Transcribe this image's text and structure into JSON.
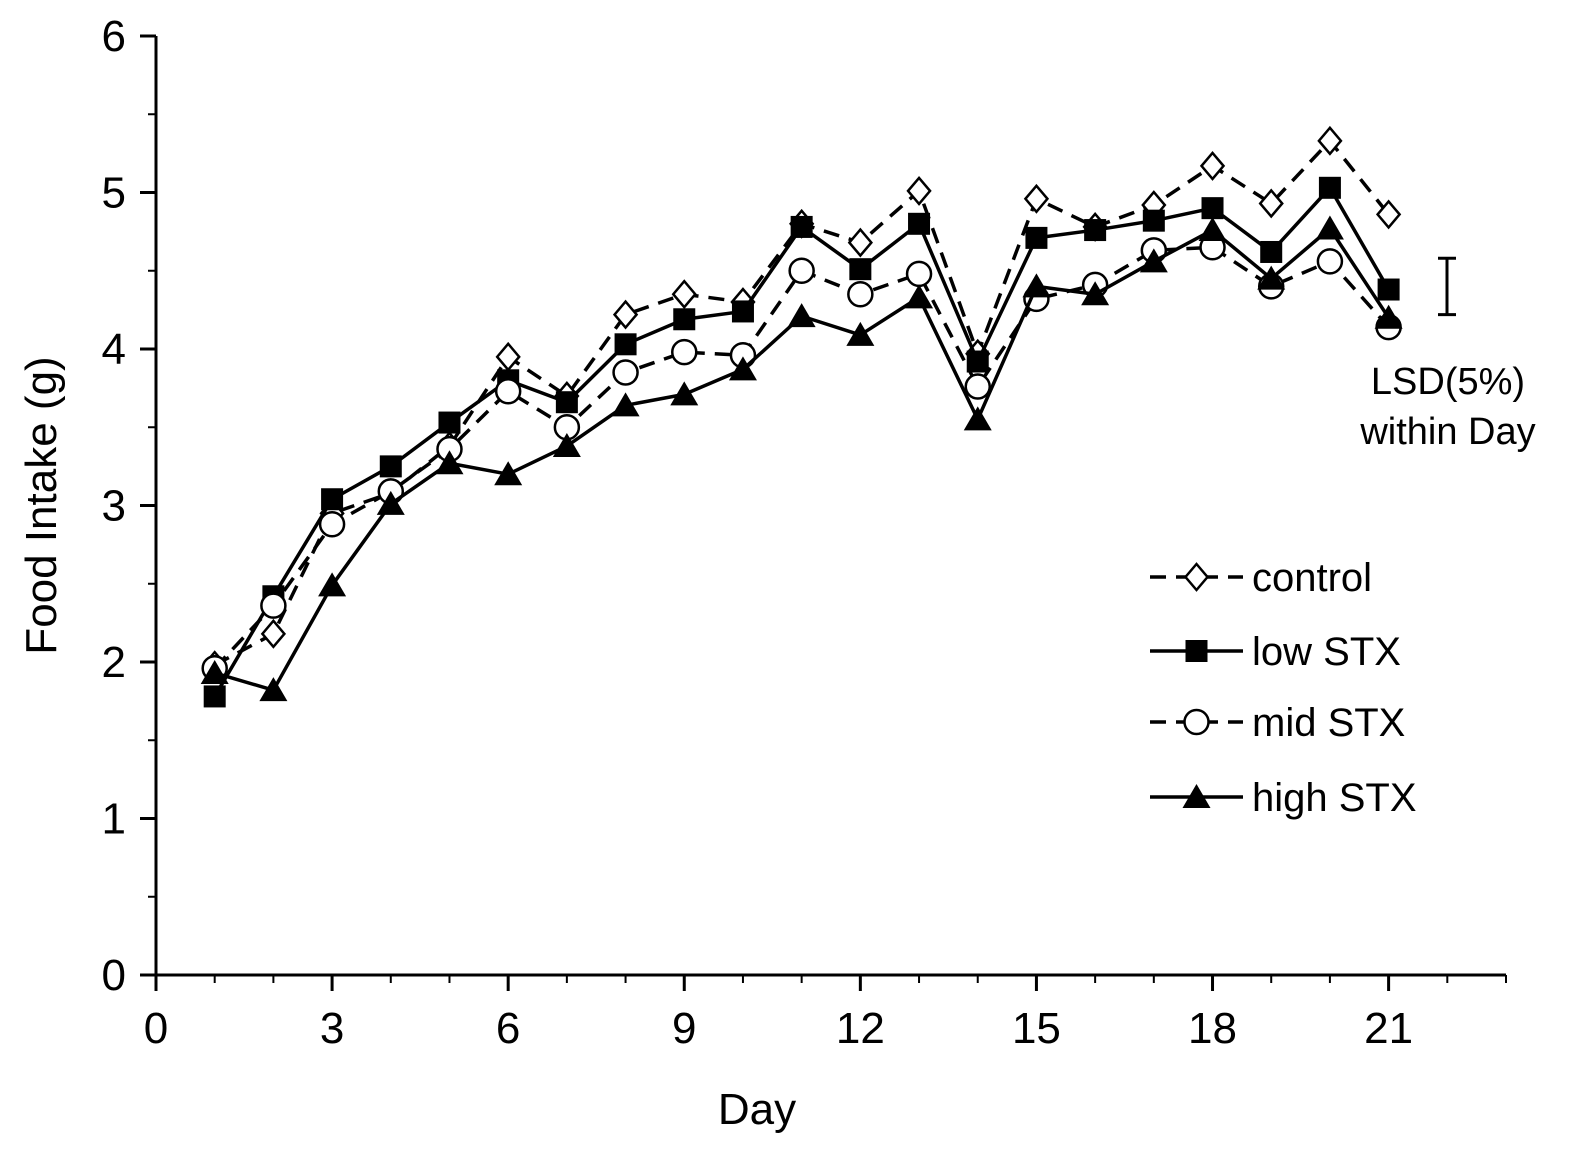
{
  "chart_data": {
    "type": "line",
    "title": "",
    "xlabel": "Day",
    "ylabel": "Food Intake (g)",
    "xlim": [
      0,
      23
    ],
    "ylim": [
      0,
      6
    ],
    "xticks": [
      0,
      3,
      6,
      9,
      12,
      15,
      18,
      21
    ],
    "yticks": [
      0,
      1,
      2,
      3,
      4,
      5,
      6
    ],
    "grid": false,
    "legend_position": "right-middle",
    "x": [
      1,
      2,
      3,
      4,
      5,
      6,
      7,
      8,
      9,
      10,
      11,
      12,
      13,
      14,
      15,
      16,
      17,
      18,
      19,
      20,
      21
    ],
    "series": [
      {
        "name": "control",
        "marker": "diamond-open",
        "line": "dashed",
        "values": [
          1.98,
          2.18,
          2.95,
          3.08,
          3.38,
          3.95,
          3.7,
          4.22,
          4.35,
          4.3,
          4.8,
          4.68,
          5.01,
          3.97,
          4.96,
          4.78,
          4.92,
          5.17,
          4.93,
          5.33,
          4.86
        ]
      },
      {
        "name": "low STX",
        "marker": "square-filled",
        "line": "solid",
        "values": [
          1.78,
          2.42,
          3.04,
          3.25,
          3.53,
          3.8,
          3.66,
          4.03,
          4.19,
          4.24,
          4.78,
          4.51,
          4.8,
          3.92,
          4.71,
          4.76,
          4.82,
          4.9,
          4.62,
          5.03,
          4.38
        ]
      },
      {
        "name": "mid STX",
        "marker": "circle-open",
        "line": "dashed",
        "values": [
          1.96,
          2.36,
          2.88,
          3.09,
          3.36,
          3.73,
          3.5,
          3.85,
          3.98,
          3.96,
          4.5,
          4.35,
          4.48,
          3.76,
          4.32,
          4.41,
          4.63,
          4.65,
          4.4,
          4.56,
          4.14
        ]
      },
      {
        "name": "high STX",
        "marker": "triangle-filled",
        "line": "solid",
        "values": [
          1.93,
          1.82,
          2.49,
          3.01,
          3.27,
          3.2,
          3.38,
          3.64,
          3.71,
          3.87,
          4.21,
          4.09,
          4.33,
          3.55,
          4.4,
          4.35,
          4.56,
          4.76,
          4.45,
          4.77,
          4.2
        ]
      }
    ],
    "annotations": {
      "lsd_label_line1": "LSD(5%)",
      "lsd_label_line2": "within Day",
      "lsd_bar_low": 4.22,
      "lsd_bar_high": 4.58
    }
  }
}
